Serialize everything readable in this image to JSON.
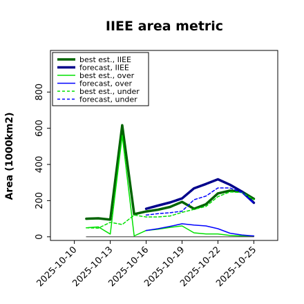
{
  "chart_data": {
    "type": "line",
    "title": "IIEE area metric",
    "ylabel": "Area (1000km2)",
    "xlabel": "",
    "xlim": [
      "2025-10-08",
      "2025-10-27"
    ],
    "ylim": [
      -20,
      1030
    ],
    "yticks": [
      0,
      200,
      400,
      600,
      800
    ],
    "xticks": [
      "2025-10-10",
      "2025-10-13",
      "2025-10-16",
      "2025-10-19",
      "2025-10-22",
      "2025-10-25"
    ],
    "highlight_tick": "2025-10-16",
    "highlight_color": "#1f9a3a",
    "legend_location": "upper-left",
    "series": [
      {
        "name": "best est., IIEE",
        "color": "#006400",
        "width": 3.5,
        "dash": "solid",
        "x": [
          "2025-10-11",
          "2025-10-12",
          "2025-10-13",
          "2025-10-14",
          "2025-10-15",
          "2025-10-16",
          "2025-10-17",
          "2025-10-18",
          "2025-10-19",
          "2025-10-20",
          "2025-10-21",
          "2025-10-22",
          "2025-10-23",
          "2025-10-24",
          "2025-10-25"
        ],
        "y": [
          100,
          102,
          95,
          617,
          125,
          140,
          150,
          165,
          193,
          155,
          180,
          240,
          255,
          250,
          210
        ]
      },
      {
        "name": "forecast, IIEE",
        "color": "#00008b",
        "width": 3.5,
        "dash": "solid",
        "x": [
          "2025-10-16",
          "2025-10-17",
          "2025-10-18",
          "2025-10-19",
          "2025-10-20",
          "2025-10-21",
          "2025-10-22",
          "2025-10-23",
          "2025-10-24",
          "2025-10-25"
        ],
        "y": [
          155,
          173,
          190,
          212,
          268,
          292,
          318,
          288,
          250,
          188
        ]
      },
      {
        "name": "best est., over",
        "color": "#00e000",
        "width": 1.5,
        "dash": "solid",
        "x": [
          "2025-10-11",
          "2025-10-12",
          "2025-10-13",
          "2025-10-14",
          "2025-10-15",
          "2025-10-16",
          "2025-10-17",
          "2025-10-18",
          "2025-10-19",
          "2025-10-20",
          "2025-10-21",
          "2025-10-22",
          "2025-10-23",
          "2025-10-24",
          "2025-10-25"
        ],
        "y": [
          50,
          55,
          15,
          560,
          5,
          35,
          42,
          52,
          60,
          22,
          16,
          16,
          8,
          5,
          5
        ]
      },
      {
        "name": "forecast, over",
        "color": "#0000ff",
        "width": 1.5,
        "dash": "solid",
        "x": [
          "2025-10-16",
          "2025-10-17",
          "2025-10-18",
          "2025-10-19",
          "2025-10-20",
          "2025-10-21",
          "2025-10-22",
          "2025-10-23",
          "2025-10-24",
          "2025-10-25"
        ],
        "y": [
          35,
          45,
          58,
          72,
          65,
          60,
          45,
          20,
          10,
          5
        ]
      },
      {
        "name": "best est., under",
        "color": "#00e000",
        "width": 1.5,
        "dash": "dashed",
        "x": [
          "2025-10-11",
          "2025-10-12",
          "2025-10-13",
          "2025-10-14",
          "2025-10-15",
          "2025-10-16",
          "2025-10-17",
          "2025-10-18",
          "2025-10-19",
          "2025-10-20",
          "2025-10-21",
          "2025-10-22",
          "2025-10-23",
          "2025-10-24",
          "2025-10-25"
        ],
        "y": [
          50,
          48,
          80,
          68,
          120,
          110,
          110,
          115,
          135,
          152,
          168,
          222,
          248,
          245,
          205
        ]
      },
      {
        "name": "forecast, under",
        "color": "#0000ff",
        "width": 1.5,
        "dash": "dashed",
        "x": [
          "2025-10-16",
          "2025-10-17",
          "2025-10-18",
          "2025-10-19",
          "2025-10-20",
          "2025-10-21",
          "2025-10-22",
          "2025-10-23",
          "2025-10-24",
          "2025-10-25"
        ],
        "y": [
          120,
          128,
          133,
          142,
          205,
          225,
          270,
          270,
          245,
          185
        ]
      },
      {
        "name": "",
        "color": "#333333",
        "width": 1,
        "dash": "solid",
        "x": [
          "2025-10-11",
          "2025-10-25"
        ],
        "y": [
          0,
          0
        ]
      }
    ]
  }
}
